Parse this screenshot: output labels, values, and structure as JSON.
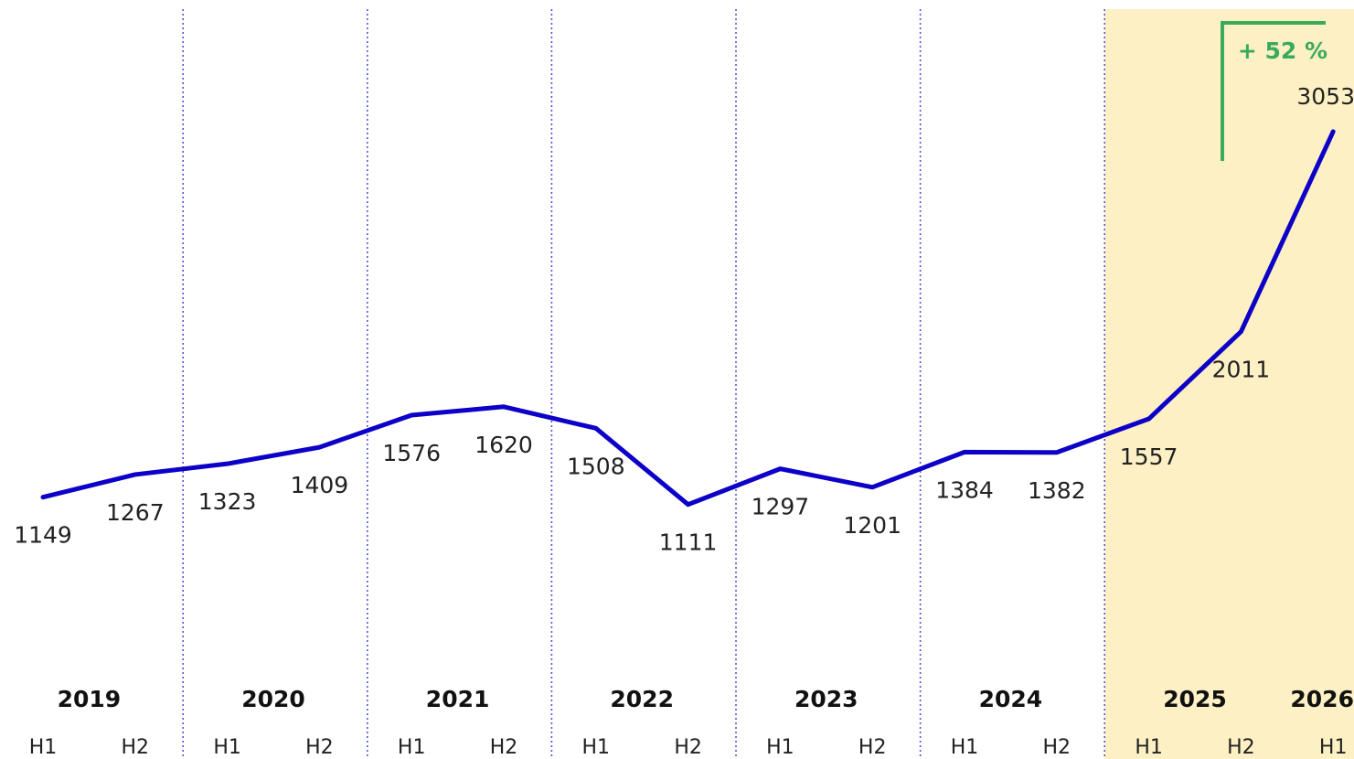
{
  "chart_data": {
    "type": "line",
    "categories": [
      "H1",
      "H2",
      "H1",
      "H2",
      "H1",
      "H2",
      "H1",
      "H2",
      "H1",
      "H2",
      "H1",
      "H2",
      "H1",
      "H2",
      "H1"
    ],
    "groups": [
      "2019",
      "2020",
      "2021",
      "2022",
      "2023",
      "2024",
      "2025",
      "2026"
    ],
    "series": [
      {
        "color": "#0c00c8",
        "values": [
          1149,
          1267,
          1323,
          1409,
          1576,
          1620,
          1508,
          1111,
          1297,
          1201,
          1384,
          1382,
          1557,
          2011,
          3053
        ]
      }
    ],
    "ylim": [
      0,
      3500
    ],
    "highlight_color": "#fdf0c4",
    "annotation": "+ 52 %",
    "annotation_color": "#3aaa5c"
  }
}
